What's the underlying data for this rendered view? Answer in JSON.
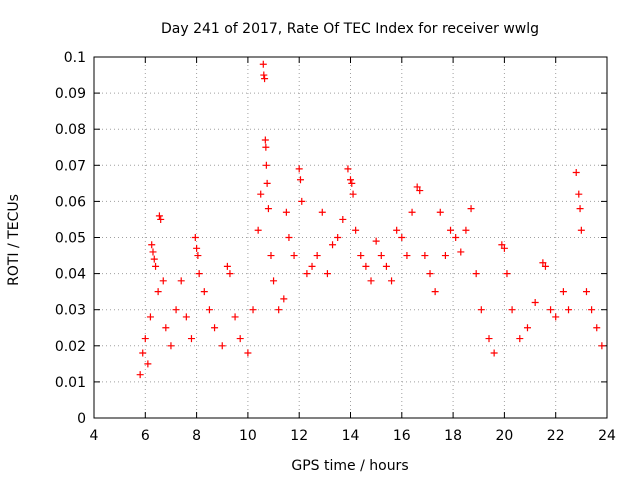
{
  "chart_data": {
    "type": "scatter",
    "title": "Day 241 of 2017, Rate Of TEC Index for receiver wwlg",
    "xlabel": "GPS time / hours",
    "ylabel": "ROTI / TECUs",
    "xlim": [
      4,
      24
    ],
    "ylim": [
      0,
      0.1
    ],
    "x_ticks": [
      4,
      6,
      8,
      10,
      12,
      14,
      16,
      18,
      20,
      22,
      24
    ],
    "y_ticks": [
      0,
      0.01,
      0.02,
      0.03,
      0.04,
      0.05,
      0.06,
      0.07,
      0.08,
      0.09,
      0.1
    ],
    "x_tick_labels": [
      "4",
      "6",
      "8",
      "10",
      "12",
      "14",
      "16",
      "18",
      "20",
      "22",
      "24"
    ],
    "y_tick_labels": [
      "0",
      "0.01",
      "0.02",
      "0.03",
      "0.04",
      "0.05",
      "0.06",
      "0.07",
      "0.08",
      "0.09",
      "0.1"
    ],
    "grid": true,
    "marker": "plus",
    "color": "#ff0000",
    "series": [
      {
        "points": [
          [
            5.8,
            0.012
          ],
          [
            5.9,
            0.018
          ],
          [
            6.0,
            0.022
          ],
          [
            6.1,
            0.015
          ],
          [
            6.2,
            0.028
          ],
          [
            6.25,
            0.048
          ],
          [
            6.3,
            0.046
          ],
          [
            6.35,
            0.044
          ],
          [
            6.4,
            0.042
          ],
          [
            6.5,
            0.035
          ],
          [
            6.55,
            0.056
          ],
          [
            6.6,
            0.055
          ],
          [
            6.7,
            0.038
          ],
          [
            6.8,
            0.025
          ],
          [
            7.0,
            0.02
          ],
          [
            7.2,
            0.03
          ],
          [
            7.4,
            0.038
          ],
          [
            7.6,
            0.028
          ],
          [
            7.8,
            0.022
          ],
          [
            7.95,
            0.05
          ],
          [
            8.0,
            0.047
          ],
          [
            8.05,
            0.045
          ],
          [
            8.1,
            0.04
          ],
          [
            8.3,
            0.035
          ],
          [
            8.5,
            0.03
          ],
          [
            8.7,
            0.025
          ],
          [
            9.0,
            0.02
          ],
          [
            9.2,
            0.042
          ],
          [
            9.3,
            0.04
          ],
          [
            9.5,
            0.028
          ],
          [
            9.7,
            0.022
          ],
          [
            10.0,
            0.018
          ],
          [
            10.2,
            0.03
          ],
          [
            10.4,
            0.052
          ],
          [
            10.5,
            0.062
          ],
          [
            10.6,
            0.098
          ],
          [
            10.62,
            0.095
          ],
          [
            10.65,
            0.094
          ],
          [
            10.68,
            0.077
          ],
          [
            10.7,
            0.075
          ],
          [
            10.72,
            0.07
          ],
          [
            10.75,
            0.065
          ],
          [
            10.8,
            0.058
          ],
          [
            10.9,
            0.045
          ],
          [
            11.0,
            0.038
          ],
          [
            11.2,
            0.03
          ],
          [
            11.4,
            0.033
          ],
          [
            11.5,
            0.057
          ],
          [
            11.6,
            0.05
          ],
          [
            11.8,
            0.045
          ],
          [
            12.0,
            0.069
          ],
          [
            12.05,
            0.066
          ],
          [
            12.1,
            0.06
          ],
          [
            12.3,
            0.04
          ],
          [
            12.5,
            0.042
          ],
          [
            12.7,
            0.045
          ],
          [
            12.9,
            0.057
          ],
          [
            13.1,
            0.04
          ],
          [
            13.3,
            0.048
          ],
          [
            13.5,
            0.05
          ],
          [
            13.7,
            0.055
          ],
          [
            13.9,
            0.069
          ],
          [
            14.0,
            0.066
          ],
          [
            14.05,
            0.065
          ],
          [
            14.1,
            0.062
          ],
          [
            14.2,
            0.052
          ],
          [
            14.4,
            0.045
          ],
          [
            14.6,
            0.042
          ],
          [
            14.8,
            0.038
          ],
          [
            15.0,
            0.049
          ],
          [
            15.2,
            0.045
          ],
          [
            15.4,
            0.042
          ],
          [
            15.6,
            0.038
          ],
          [
            15.8,
            0.052
          ],
          [
            16.0,
            0.05
          ],
          [
            16.2,
            0.045
          ],
          [
            16.4,
            0.057
          ],
          [
            16.6,
            0.064
          ],
          [
            16.7,
            0.063
          ],
          [
            16.9,
            0.045
          ],
          [
            17.1,
            0.04
          ],
          [
            17.3,
            0.035
          ],
          [
            17.5,
            0.057
          ],
          [
            17.7,
            0.045
          ],
          [
            17.9,
            0.052
          ],
          [
            18.1,
            0.05
          ],
          [
            18.3,
            0.046
          ],
          [
            18.5,
            0.052
          ],
          [
            18.7,
            0.058
          ],
          [
            18.9,
            0.04
          ],
          [
            19.1,
            0.03
          ],
          [
            19.4,
            0.022
          ],
          [
            19.6,
            0.018
          ],
          [
            19.9,
            0.048
          ],
          [
            20.0,
            0.047
          ],
          [
            20.1,
            0.04
          ],
          [
            20.3,
            0.03
          ],
          [
            20.6,
            0.022
          ],
          [
            20.9,
            0.025
          ],
          [
            21.2,
            0.032
          ],
          [
            21.5,
            0.043
          ],
          [
            21.6,
            0.042
          ],
          [
            21.8,
            0.03
          ],
          [
            22.0,
            0.028
          ],
          [
            22.3,
            0.035
          ],
          [
            22.5,
            0.03
          ],
          [
            22.8,
            0.068
          ],
          [
            22.9,
            0.062
          ],
          [
            22.95,
            0.058
          ],
          [
            23.0,
            0.052
          ],
          [
            23.2,
            0.035
          ],
          [
            23.4,
            0.03
          ],
          [
            23.6,
            0.025
          ],
          [
            23.8,
            0.02
          ]
        ]
      }
    ]
  }
}
